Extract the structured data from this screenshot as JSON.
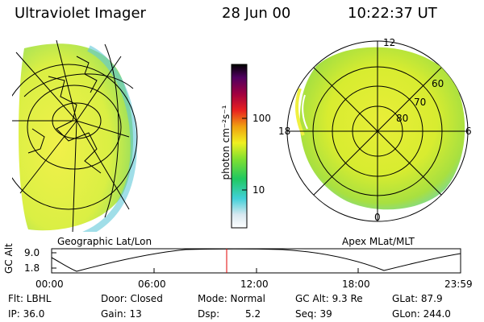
{
  "header": {
    "instrument": "Ultraviolet Imager",
    "date": "28 Jun 00",
    "time": "10:22:37 UT"
  },
  "colorbar": {
    "label": "photon cm⁻²s⁻¹",
    "ticks": [
      "100",
      "10"
    ]
  },
  "panels": {
    "left_label": "Geographic Lat/Lon",
    "right_label": "Apex MLat/MLT"
  },
  "polar": {
    "lat_labels": [
      "60",
      "70",
      "80"
    ],
    "mlt_labels": [
      "12",
      "18",
      "6",
      "0"
    ]
  },
  "altitude_plot": {
    "ylabel": "GC Alt",
    "yticks": [
      "9.0",
      "1.8"
    ],
    "xticks": [
      "00:00",
      "06:00",
      "12:00",
      "18:00",
      "23:59"
    ]
  },
  "info": {
    "filter": "Flt: LBHL",
    "ip": "IP: 36.0",
    "door": "Door: Closed",
    "gain": "Gain: 13",
    "mode": "Mode: Normal",
    "dsp_label": "Dsp:",
    "dsp_value": "5.2",
    "gc_alt": "GC Alt: 9.3 Re",
    "seq": "Seq: 39",
    "glat": "GLat:  87.9",
    "glon": "GLon: 244.0"
  }
}
